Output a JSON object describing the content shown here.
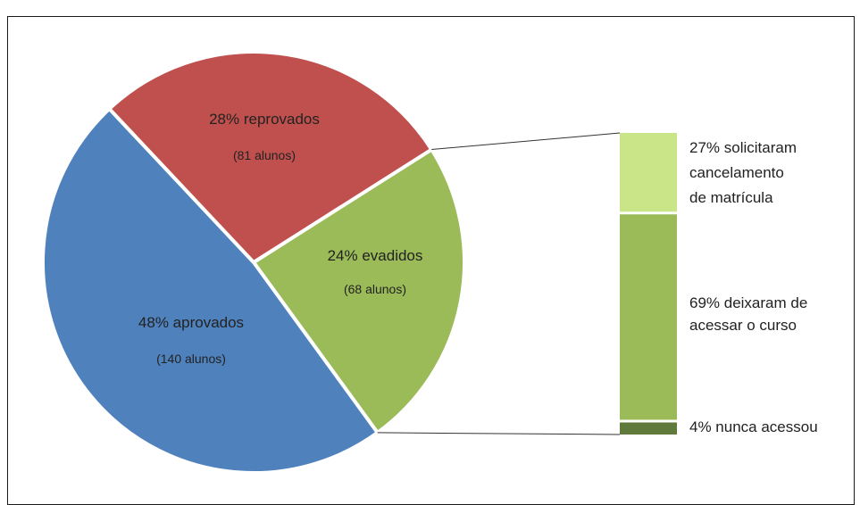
{
  "chart_data": {
    "type": "pie",
    "pie": {
      "slices": [
        {
          "key": "aprovados",
          "percent": 48,
          "label": "48% aprovados",
          "count_label": "(140 alunos)",
          "color": "#4f81bd"
        },
        {
          "key": "reprovados",
          "percent": 28,
          "label": "28% reprovados",
          "count_label": "(81 alunos)",
          "color": "#c0504d"
        },
        {
          "key": "evadidos",
          "percent": 24,
          "label": "24% evadidos",
          "count_label": "(68 alunos)",
          "color": "#9bbb59"
        }
      ]
    },
    "breakdown_of": "evadidos",
    "bar": {
      "segments": [
        {
          "percent": 27,
          "label_lines": [
            "27% solicitaram",
            "cancelamento",
            "de matrícula"
          ],
          "color": "#c9e587"
        },
        {
          "percent": 69,
          "label_lines": [
            "69% deixaram de",
            "acessar o curso"
          ],
          "color": "#9bbb59"
        },
        {
          "percent": 4,
          "label_lines": [
            "4% nunca acessou"
          ],
          "color": "#5f7a3a"
        }
      ]
    },
    "connector_color": "#333333"
  }
}
